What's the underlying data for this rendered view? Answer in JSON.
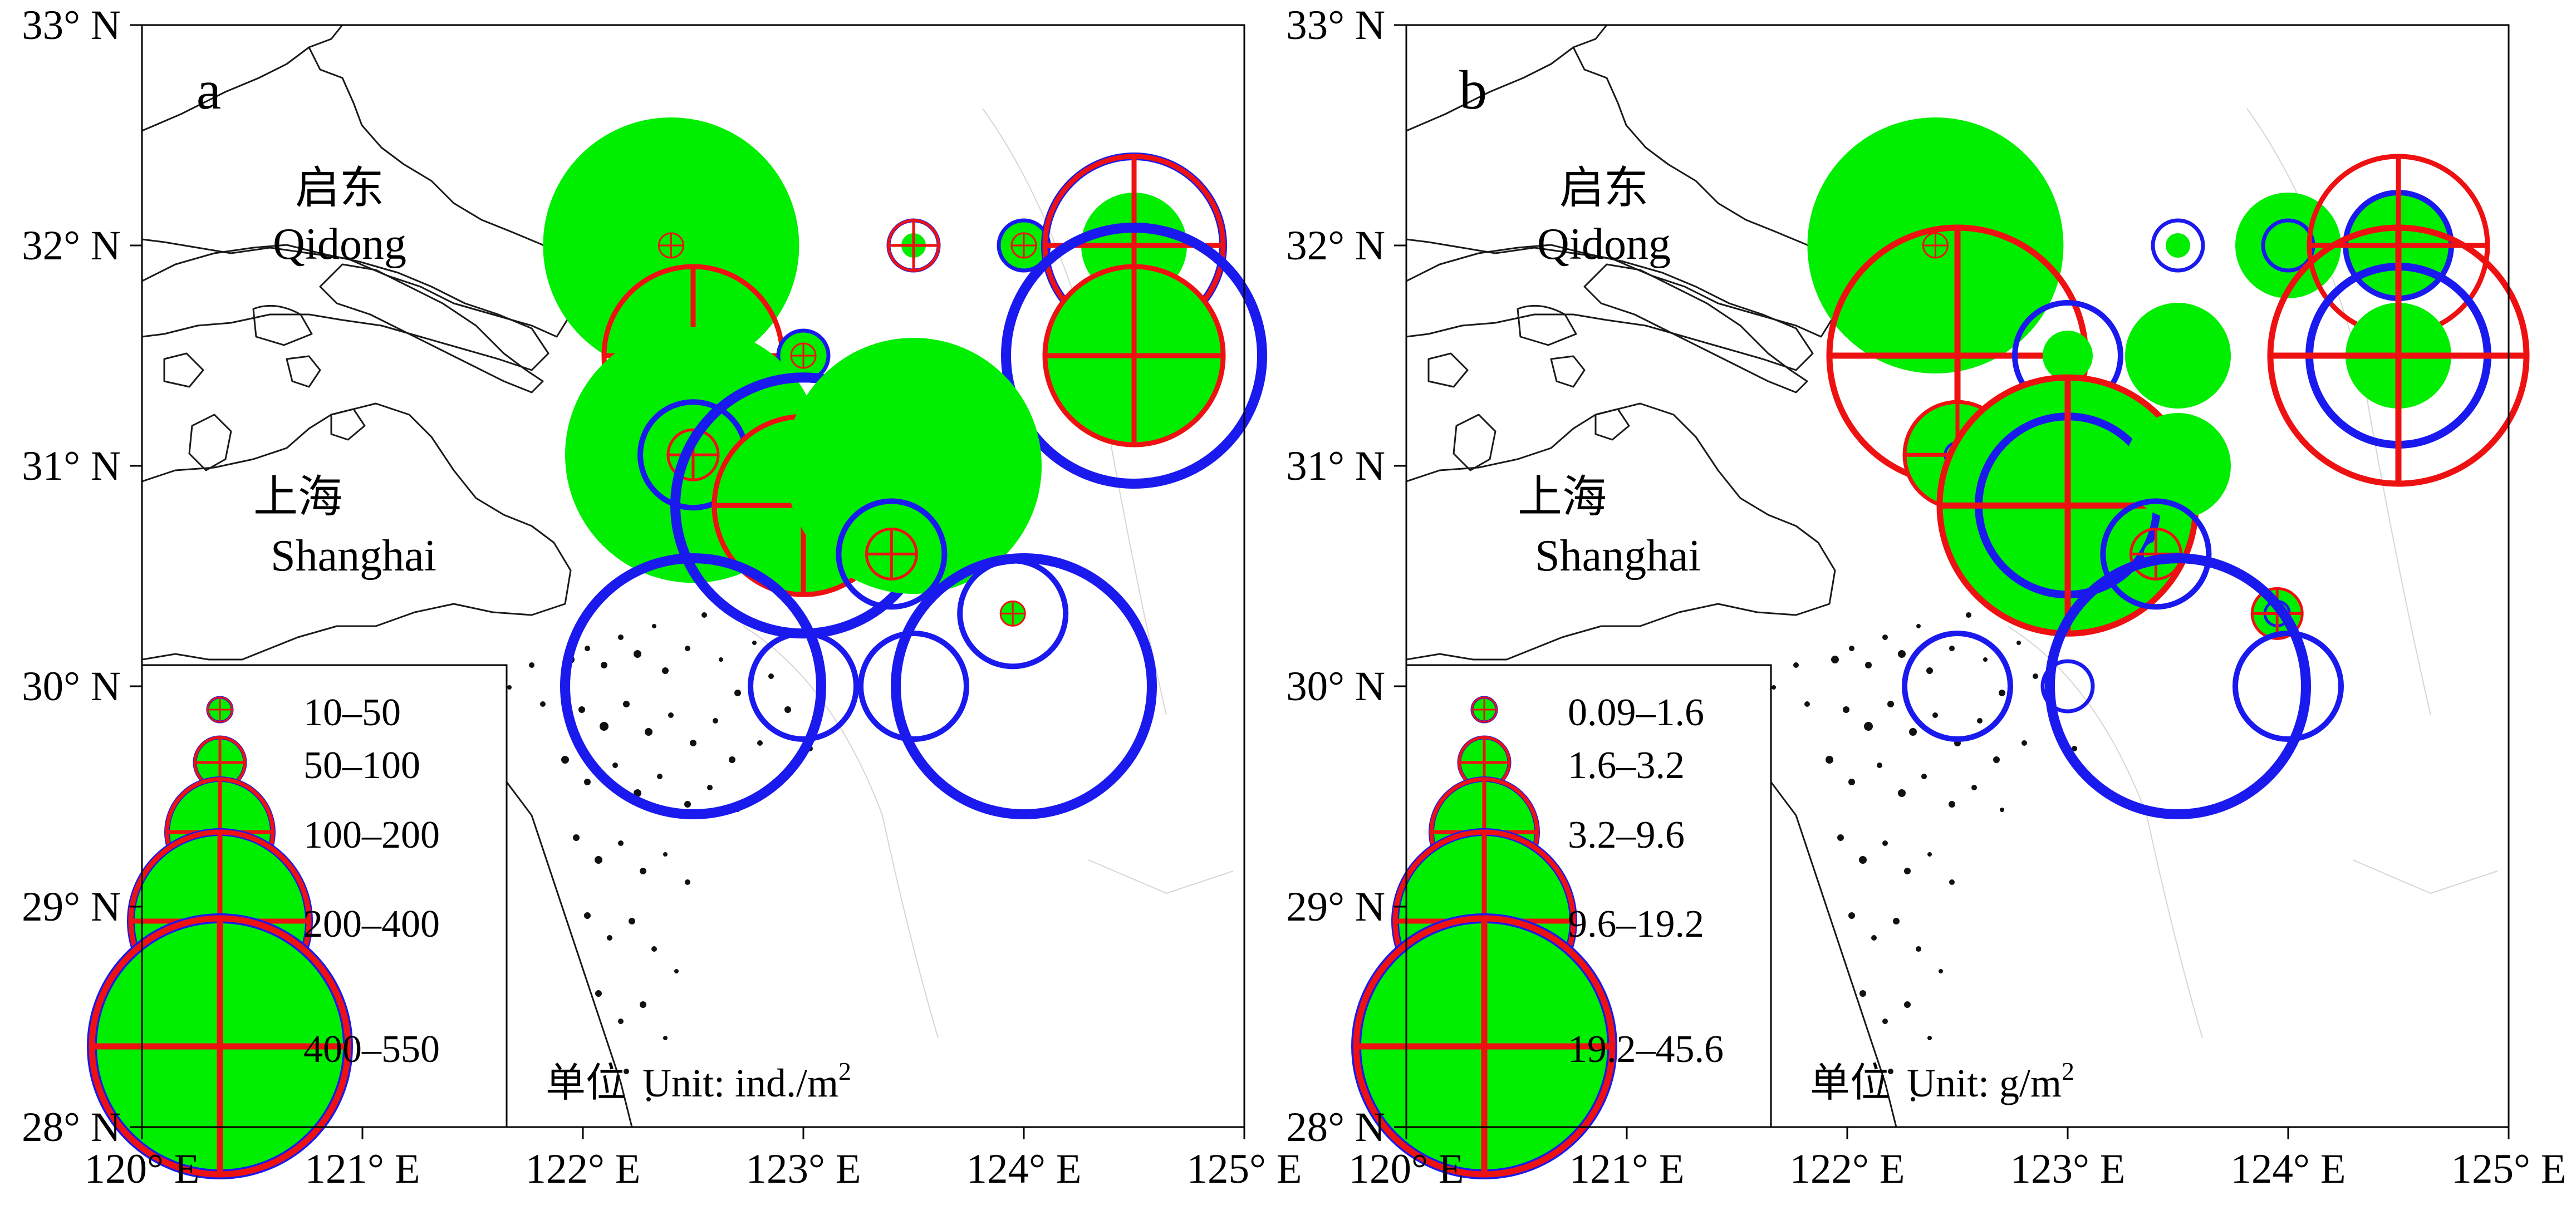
{
  "axes": {
    "x_ticks": [
      "120° E",
      "121° E",
      "122° E",
      "123° E",
      "124° E",
      "125° E"
    ],
    "y_ticks": [
      "33° N",
      "32° N",
      "31° N",
      "30° N",
      "29° N",
      "28° N"
    ],
    "lon_range": [
      120,
      125
    ],
    "lat_range": [
      28,
      33
    ]
  },
  "place_labels": {
    "qidong_cn": "启东",
    "qidong_en": "Qidong",
    "shanghai_cn": "上海",
    "shanghai_en": "Shanghai"
  },
  "colors": {
    "fill": "#00ee00",
    "red": "#ee1111",
    "blue": "#1a1aee"
  },
  "panels": [
    {
      "id": "a",
      "label": "a",
      "unit_cn": "单位",
      "unit_en": "Unit: ind./m",
      "unit_sup": "2",
      "legend": [
        "10–50",
        "50–100",
        "100–200",
        "200–400",
        "400–550"
      ],
      "stations": [
        {
          "lon": 122.4,
          "lat": 32.0,
          "fill": 5,
          "red": 1,
          "blue": 0
        },
        {
          "lon": 123.5,
          "lat": 32.0,
          "fill": 1,
          "red": 2,
          "blue": 2
        },
        {
          "lon": 124.0,
          "lat": 32.0,
          "fill": 2,
          "red": 1,
          "blue": 2
        },
        {
          "lon": 124.5,
          "lat": 32.0,
          "fill": 3,
          "red": 4,
          "blue": 4
        },
        {
          "lon": 122.5,
          "lat": 31.5,
          "fill": 2,
          "red": 4,
          "blue": 0
        },
        {
          "lon": 123.0,
          "lat": 31.5,
          "fill": 2,
          "red": 1,
          "blue": 2
        },
        {
          "lon": 123.5,
          "lat": 31.5,
          "fill": 1,
          "red": 0,
          "blue": 0
        },
        {
          "lon": 124.5,
          "lat": 31.5,
          "fill": 4,
          "red": 4,
          "blue": 5
        },
        {
          "lon": 122.5,
          "lat": 31.05,
          "fill": 5,
          "red": 2,
          "blue": 3
        },
        {
          "lon": 123.0,
          "lat": 30.82,
          "fill": 4,
          "red": 4,
          "blue": 5
        },
        {
          "lon": 123.5,
          "lat": 31.0,
          "fill": 5,
          "red": 0,
          "blue": 0
        },
        {
          "lon": 123.4,
          "lat": 30.6,
          "fill": 2,
          "red": 2,
          "blue": 3
        },
        {
          "lon": 123.95,
          "lat": 30.33,
          "fill": 1,
          "red": 1,
          "blue": 3
        },
        {
          "lon": 122.5,
          "lat": 30.0,
          "fill": 0,
          "red": 0,
          "blue": 5
        },
        {
          "lon": 123.0,
          "lat": 30.0,
          "fill": 0,
          "red": 0,
          "blue": 3
        },
        {
          "lon": 123.5,
          "lat": 30.0,
          "fill": 0,
          "red": 0,
          "blue": 3
        },
        {
          "lon": 124.0,
          "lat": 30.0,
          "fill": 0,
          "red": 0,
          "blue": 5
        }
      ]
    },
    {
      "id": "b",
      "label": "b",
      "unit_cn": "单位",
      "unit_en": "Unit: g/m",
      "unit_sup": "2",
      "legend": [
        "0.09–1.6",
        "1.6–3.2",
        "3.2–9.6",
        "9.6–19.2",
        "19.2–45.6"
      ],
      "stations": [
        {
          "lon": 122.4,
          "lat": 32.0,
          "fill": 5,
          "red": 1,
          "blue": 0
        },
        {
          "lon": 123.5,
          "lat": 32.0,
          "fill": 1,
          "red": 0,
          "blue": 2
        },
        {
          "lon": 124.0,
          "lat": 32.0,
          "fill": 3,
          "red": 0,
          "blue": 2
        },
        {
          "lon": 124.5,
          "lat": 32.0,
          "fill": 3,
          "red": 4,
          "blue": 3
        },
        {
          "lon": 122.5,
          "lat": 31.5,
          "fill": 1,
          "red": 5,
          "blue": 0
        },
        {
          "lon": 123.0,
          "lat": 31.5,
          "fill": 2,
          "red": 0,
          "blue": 3
        },
        {
          "lon": 123.5,
          "lat": 31.5,
          "fill": 3,
          "red": 0,
          "blue": 0
        },
        {
          "lon": 124.5,
          "lat": 31.5,
          "fill": 3,
          "red": 5,
          "blue": 4
        },
        {
          "lon": 122.5,
          "lat": 31.05,
          "fill": 3,
          "red": 3,
          "blue": 1
        },
        {
          "lon": 123.0,
          "lat": 30.82,
          "fill": 5,
          "red": 5,
          "blue": 4
        },
        {
          "lon": 123.5,
          "lat": 31.0,
          "fill": 3,
          "red": 0,
          "blue": 0
        },
        {
          "lon": 123.4,
          "lat": 30.6,
          "fill": 1,
          "red": 2,
          "blue": 3
        },
        {
          "lon": 123.95,
          "lat": 30.33,
          "fill": 2,
          "red": 2,
          "blue": 1
        },
        {
          "lon": 122.5,
          "lat": 30.0,
          "fill": 0,
          "red": 0,
          "blue": 3
        },
        {
          "lon": 123.0,
          "lat": 30.0,
          "fill": 0,
          "red": 0,
          "blue": 2
        },
        {
          "lon": 123.5,
          "lat": 30.0,
          "fill": 0,
          "red": 0,
          "blue": 5
        },
        {
          "lon": 124.0,
          "lat": 30.0,
          "fill": 0,
          "red": 0,
          "blue": 3
        }
      ]
    }
  ]
}
